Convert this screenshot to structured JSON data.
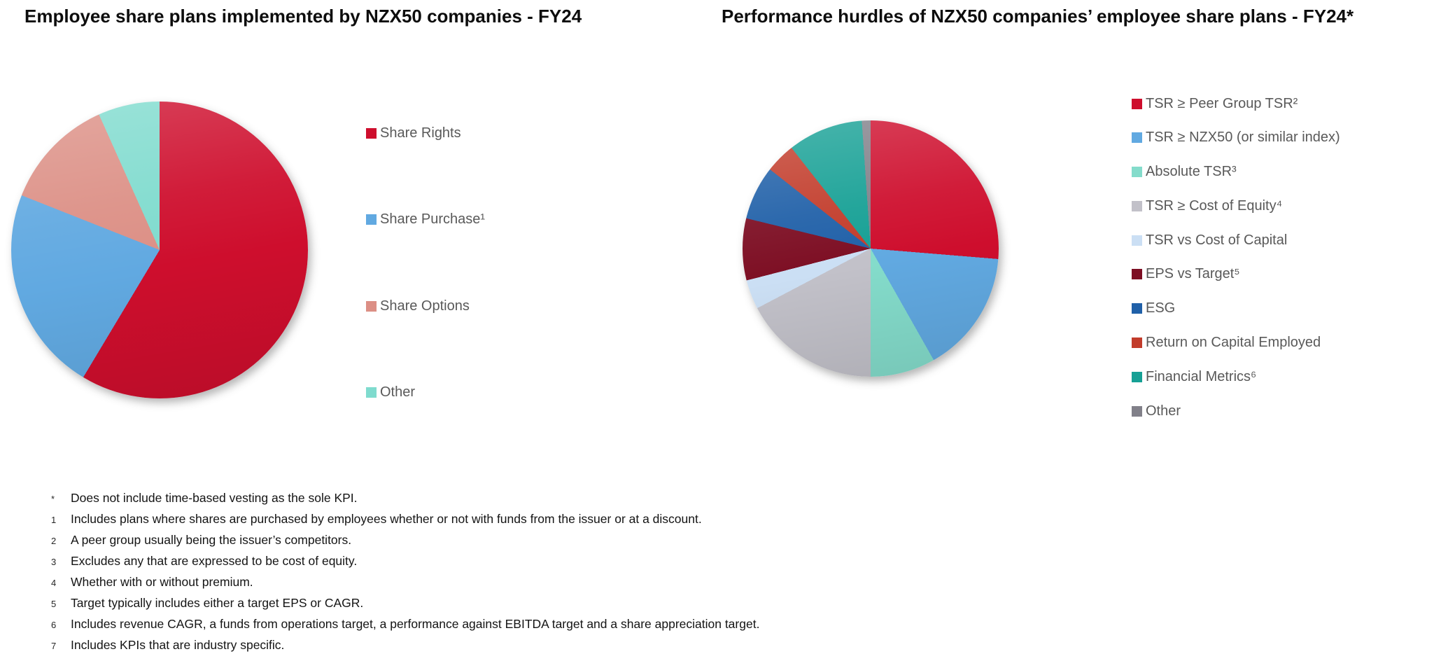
{
  "charts": [
    {
      "title": "Employee share plans implemented by NZX50 companies - FY24"
    },
    {
      "title": "Performance hurdles of NZX50 companies’ employee share plans - FY24*"
    }
  ],
  "chart_data": [
    {
      "type": "pie",
      "title": "Employee share plans implemented by NZX50 companies - FY24",
      "labels": [
        "Share Rights",
        "Share Purchase¹",
        "Share Options",
        "Other"
      ],
      "values": [
        58.6,
        22.4,
        12.3,
        6.7
      ],
      "unit": "percent of companies",
      "colors": [
        "#CE0E2D",
        "#61A9E1",
        "#DC8F85",
        "#7FDBCE"
      ],
      "start_angle_deg": 0,
      "direction": "clockwise",
      "legend_position": "right",
      "data_labels": false
    },
    {
      "type": "pie",
      "title": "Performance hurdles of NZX50 companies’ employee share plans - FY24*",
      "labels": [
        "TSR ≥ Peer Group TSR²",
        "TSR ≥ NZX50 (or similar index)",
        "Absolute TSR³",
        "TSR ≥ Cost of Equity⁴",
        "TSR vs Cost of Capital",
        "EPS vs Target⁵",
        "ESG",
        "Return on Capital Employed",
        "Financial Metrics⁶",
        "Other"
      ],
      "values": [
        26.3,
        15.5,
        8.2,
        17.3,
        3.7,
        7.8,
        6.8,
        3.8,
        9.5,
        1.1
      ],
      "unit": "percent of performance hurdles",
      "colors": [
        "#CE0E2D",
        "#61A9E1",
        "#84DCCB",
        "#C2C1C9",
        "#CBDFF4",
        "#7D0E23",
        "#2060A8",
        "#C23C2B",
        "#16A095",
        "#818089"
      ],
      "start_angle_deg": 0,
      "direction": "clockwise",
      "legend_position": "right",
      "data_labels": false
    }
  ],
  "footnotes": [
    {
      "marker": "*",
      "text": "Does not include time-based vesting as the sole KPI."
    },
    {
      "marker": "1",
      "text": "Includes plans where shares are purchased by employees whether or not with funds from the issuer or at a discount."
    },
    {
      "marker": "2",
      "text": "A peer group usually being the issuer’s competitors."
    },
    {
      "marker": "3",
      "text": "Excludes any that are expressed to be cost of equity."
    },
    {
      "marker": "4",
      "text": "Whether with or without premium."
    },
    {
      "marker": "5",
      "text": "Target typically includes either a target EPS or CAGR."
    },
    {
      "marker": "6",
      "text": "Includes revenue CAGR, a funds from operations target, a performance against EBITDA target and a share appreciation target."
    },
    {
      "marker": "7",
      "text": "Includes KPIs that are industry specific."
    }
  ]
}
